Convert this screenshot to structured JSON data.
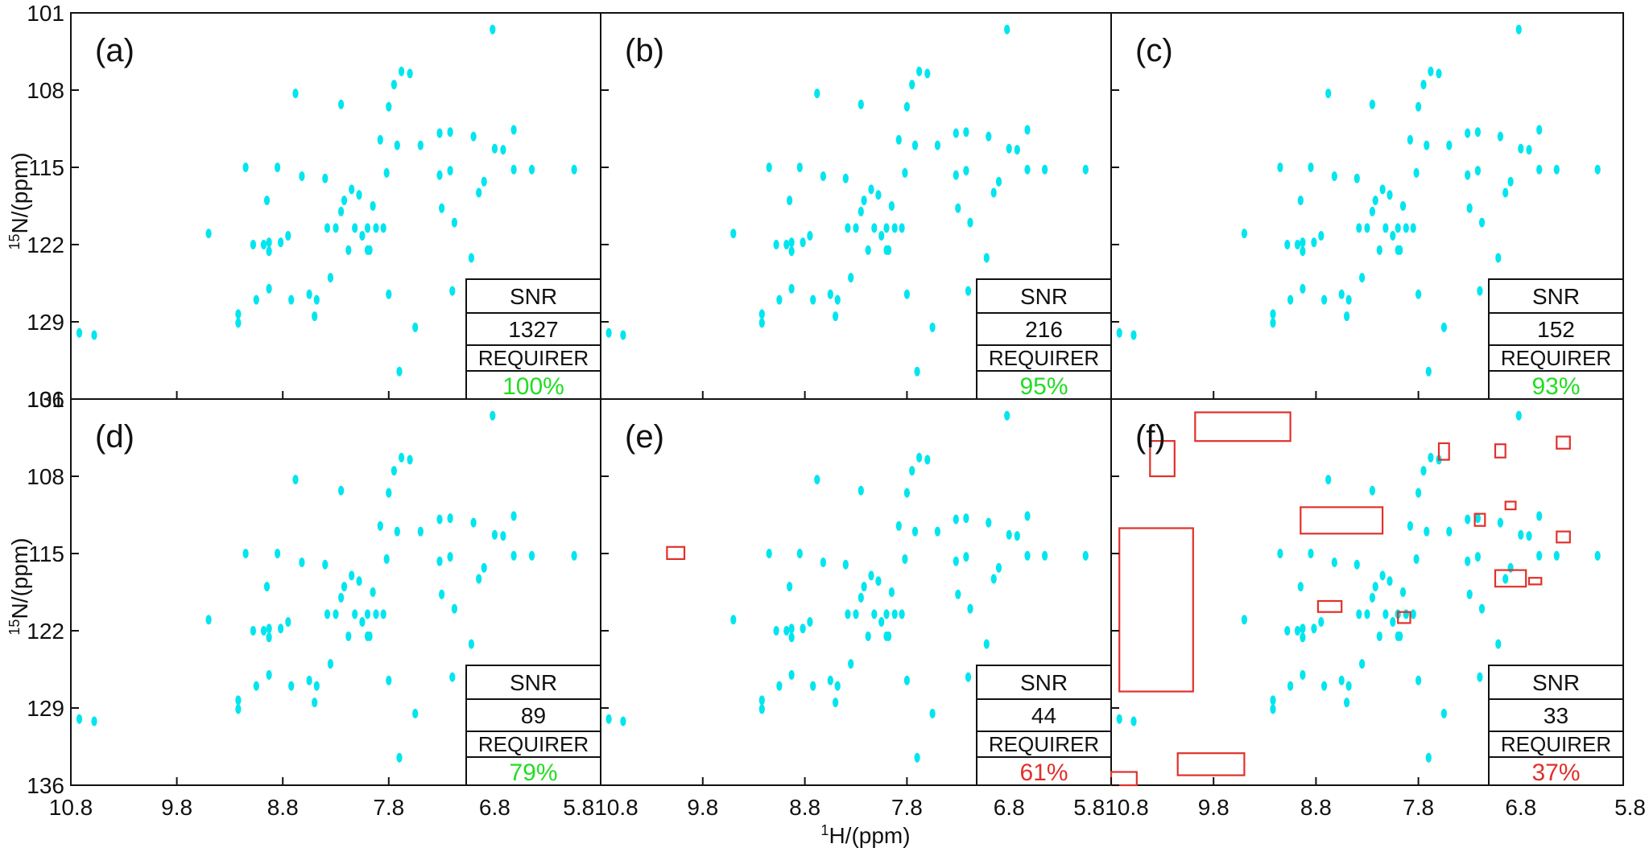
{
  "chart_data": {
    "type": "scatter",
    "title": "",
    "xlabel": "H/(ppm)",
    "xlabel_sup": "1",
    "ylabel": "N/(ppm)",
    "ylabel_sup": "15",
    "xlim": [
      10.8,
      5.8
    ],
    "ylim": [
      101,
      136
    ],
    "x_ticks": [
      "10.8",
      "9.8",
      "8.8",
      "7.8",
      "6.8",
      "5.8"
    ],
    "y_ticks": [
      "101",
      "108",
      "115",
      "122",
      "129",
      "136"
    ],
    "peak_color": "#00e5ee",
    "box_color": "#e0312b",
    "good_color": "#22dd22",
    "bad_color": "#e0312b",
    "snr_label": "SNR",
    "requirer_label": "REQUIRER",
    "panels": [
      {
        "label": "(a)",
        "snr": "1327",
        "requirer": "100%",
        "status": "good"
      },
      {
        "label": "(b)",
        "snr": "216",
        "requirer": "95%",
        "status": "good"
      },
      {
        "label": "(c)",
        "snr": "152",
        "requirer": "93%",
        "status": "good"
      },
      {
        "label": "(d)",
        "snr": "89",
        "requirer": "79%",
        "status": "good"
      },
      {
        "label": "(e)",
        "snr": "44",
        "requirer": "61%",
        "status": "bad"
      },
      {
        "label": "(f)",
        "snr": "33",
        "requirer": "37%",
        "status": "bad"
      }
    ],
    "peaks": [
      [
        10.72,
        130.0
      ],
      [
        10.58,
        130.2
      ],
      [
        9.5,
        121.0
      ],
      [
        9.22,
        128.3
      ],
      [
        9.22,
        129.1
      ],
      [
        9.15,
        115.0
      ],
      [
        9.08,
        122.0
      ],
      [
        9.05,
        127.0
      ],
      [
        8.98,
        122.0
      ],
      [
        8.95,
        118.0
      ],
      [
        8.93,
        121.8
      ],
      [
        8.93,
        122.6
      ],
      [
        8.93,
        126.0
      ],
      [
        8.85,
        115.0
      ],
      [
        8.82,
        121.8
      ],
      [
        8.75,
        121.2
      ],
      [
        8.72,
        127.0
      ],
      [
        8.68,
        108.3
      ],
      [
        8.62,
        115.8
      ],
      [
        8.55,
        126.5
      ],
      [
        8.5,
        128.5
      ],
      [
        8.48,
        127.0
      ],
      [
        8.4,
        116.0
      ],
      [
        8.38,
        120.5
      ],
      [
        8.35,
        125.0
      ],
      [
        8.3,
        120.5
      ],
      [
        8.25,
        109.3
      ],
      [
        8.25,
        119.0
      ],
      [
        8.22,
        118.0
      ],
      [
        8.18,
        122.5
      ],
      [
        8.15,
        117.0
      ],
      [
        8.12,
        120.5
      ],
      [
        8.08,
        117.5
      ],
      [
        8.05,
        121.2
      ],
      [
        8.0,
        120.5
      ],
      [
        8.0,
        122.5
      ],
      [
        7.98,
        122.5
      ],
      [
        7.95,
        118.5
      ],
      [
        7.92,
        120.5
      ],
      [
        7.88,
        112.5
      ],
      [
        7.85,
        120.5
      ],
      [
        7.82,
        115.5
      ],
      [
        7.8,
        126.5
      ],
      [
        7.8,
        109.5
      ],
      [
        7.75,
        107.5
      ],
      [
        7.72,
        113.0
      ],
      [
        7.7,
        133.5
      ],
      [
        7.68,
        106.3
      ],
      [
        7.6,
        106.5
      ],
      [
        7.55,
        129.5
      ],
      [
        7.5,
        113.0
      ],
      [
        7.32,
        111.9
      ],
      [
        7.32,
        115.7
      ],
      [
        7.3,
        118.7
      ],
      [
        7.22,
        111.8
      ],
      [
        7.22,
        115.3
      ],
      [
        7.2,
        126.2
      ],
      [
        7.18,
        120.0
      ],
      [
        7.02,
        123.2
      ],
      [
        7.0,
        112.2
      ],
      [
        6.95,
        117.3
      ],
      [
        6.9,
        116.3
      ],
      [
        6.82,
        102.5
      ],
      [
        6.8,
        113.3
      ],
      [
        6.72,
        113.4
      ],
      [
        6.62,
        111.6
      ],
      [
        6.62,
        115.2
      ],
      [
        6.45,
        115.2
      ],
      [
        6.05,
        115.2
      ]
    ],
    "annotation_boxes": {
      "(e)": [
        [
          10.15,
          114.4,
          9.98,
          115.5
        ]
      ],
      "(f)": [
        [
          9.98,
          102.2,
          9.05,
          104.8
        ],
        [
          10.42,
          104.8,
          10.18,
          108.0
        ],
        [
          8.95,
          110.8,
          8.15,
          113.2
        ],
        [
          10.72,
          112.7,
          10.0,
          127.5
        ],
        [
          8.78,
          119.3,
          8.55,
          120.3
        ],
        [
          8.0,
          120.3,
          7.88,
          121.3
        ],
        [
          7.6,
          105.0,
          7.5,
          106.5
        ],
        [
          7.05,
          105.1,
          6.95,
          106.3
        ],
        [
          6.45,
          104.4,
          6.32,
          105.5
        ],
        [
          7.25,
          111.4,
          7.15,
          112.5
        ],
        [
          6.95,
          110.3,
          6.85,
          111.0
        ],
        [
          6.45,
          113.0,
          6.32,
          114.0
        ],
        [
          7.05,
          116.5,
          6.75,
          118.0
        ],
        [
          6.72,
          117.2,
          6.6,
          117.8
        ],
        [
          10.15,
          133.1,
          9.5,
          135.1
        ],
        [
          10.8,
          134.8,
          10.55,
          136.0
        ]
      ]
    }
  }
}
